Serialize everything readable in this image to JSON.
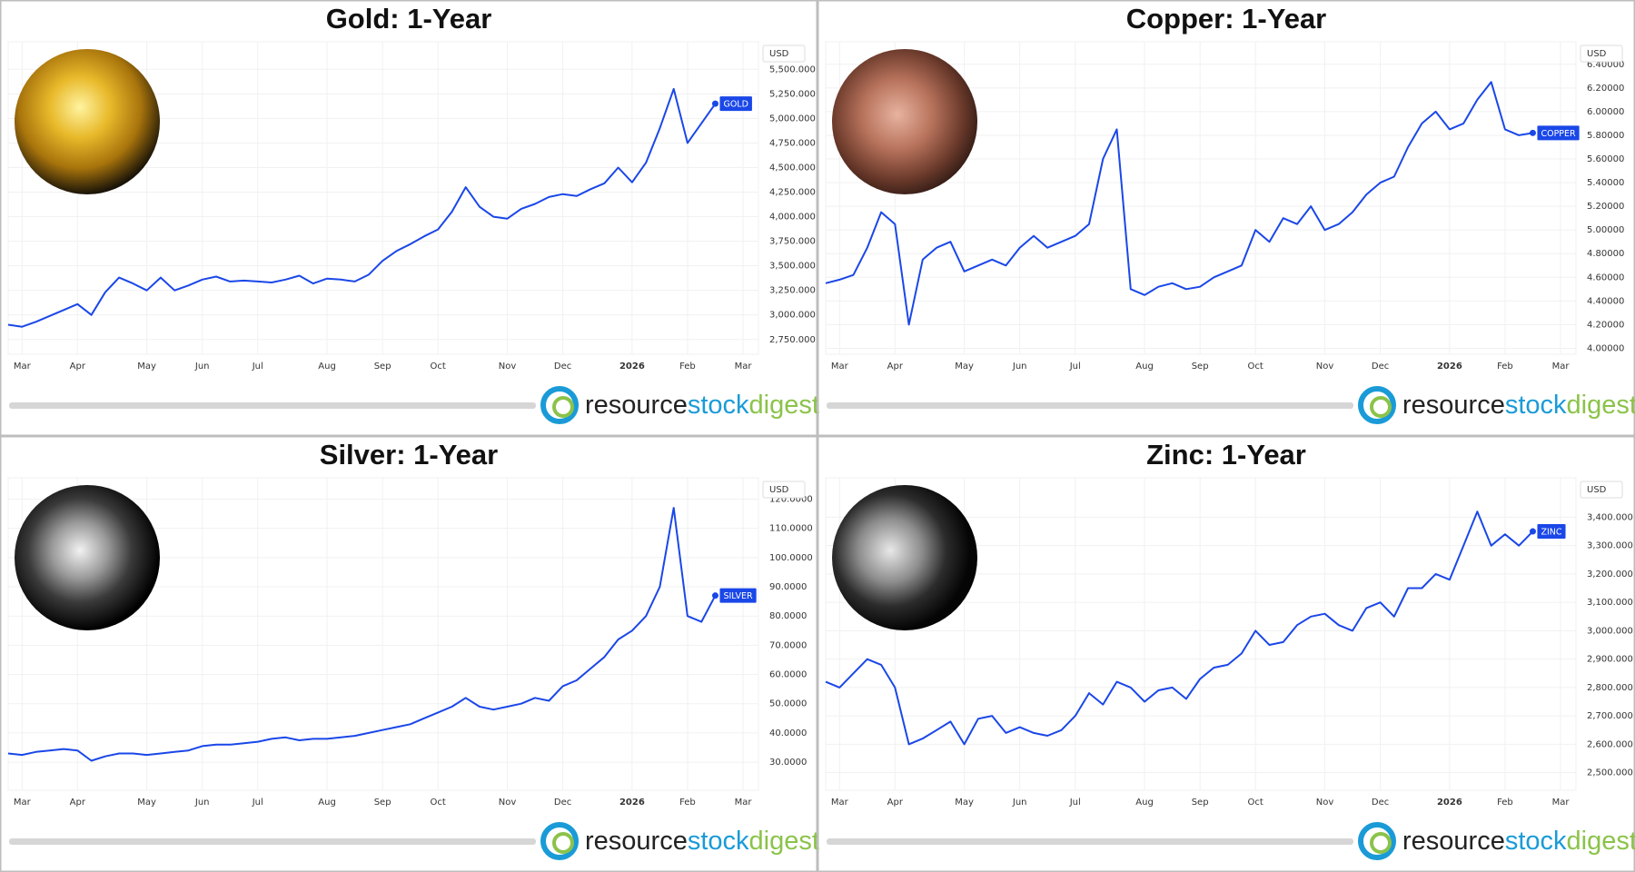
{
  "brand": {
    "part1": "resource",
    "part2": "stock",
    "part3": "digest"
  },
  "chart_data": [
    {
      "type": "line",
      "title": "Gold: 1-Year",
      "y_unit": "USD",
      "categories": [
        null,
        "Mar",
        null,
        null,
        null,
        "Apr",
        null,
        null,
        null,
        null,
        "May",
        null,
        null,
        null,
        "Jun",
        null,
        null,
        null,
        "Jul",
        null,
        null,
        null,
        null,
        "Aug",
        null,
        null,
        null,
        "Sep",
        null,
        null,
        null,
        "Oct",
        null,
        null,
        null,
        null,
        "Nov",
        null,
        null,
        null,
        "Dec",
        null,
        null,
        null,
        null,
        "2026",
        null,
        null,
        null,
        "Feb",
        null,
        null,
        null,
        "Mar"
      ],
      "series": [
        {
          "name": "GOLD",
          "color": "#1a47e8",
          "values": [
            2900,
            2880,
            2930,
            2990,
            3050,
            3110,
            3000,
            3230,
            3380,
            3320,
            3250,
            3380,
            3250,
            3300,
            3360,
            3390,
            3340,
            3350,
            3340,
            3330,
            3360,
            3400,
            3320,
            3370,
            3360,
            3340,
            3410,
            3550,
            3650,
            3720,
            3800,
            3870,
            4050,
            4300,
            4100,
            4000,
            3980,
            4080,
            4130,
            4200,
            4230,
            4210,
            4280,
            4340,
            4500,
            4350,
            4550,
            4900,
            5300,
            4750,
            4950,
            5150,
            null,
            null
          ]
        }
      ],
      "ylim": [
        2600,
        5780
      ],
      "yticks": [
        {
          "value": 2750,
          "label": "2,750.000"
        },
        {
          "value": 3000,
          "label": "3,000.000"
        },
        {
          "value": 3250,
          "label": "3,250.000"
        },
        {
          "value": 3500,
          "label": "3,500.000"
        },
        {
          "value": 3750,
          "label": "3,750.000"
        },
        {
          "value": 4000,
          "label": "4,000.000"
        },
        {
          "value": 4250,
          "label": "4,250.000"
        },
        {
          "value": 4500,
          "label": "4,500.000"
        },
        {
          "value": 4750,
          "label": "4,750.000"
        },
        {
          "value": 5000,
          "label": "5,000.000"
        },
        {
          "value": 5250,
          "label": "5,250.000"
        },
        {
          "value": 5500,
          "label": "5,500.000"
        }
      ],
      "grid": true
    },
    {
      "type": "line",
      "title": "Copper: 1-Year",
      "y_unit": "USD",
      "categories": [
        null,
        "Mar",
        null,
        null,
        null,
        "Apr",
        null,
        null,
        null,
        null,
        "May",
        null,
        null,
        null,
        "Jun",
        null,
        null,
        null,
        "Jul",
        null,
        null,
        null,
        null,
        "Aug",
        null,
        null,
        null,
        "Sep",
        null,
        null,
        null,
        "Oct",
        null,
        null,
        null,
        null,
        "Nov",
        null,
        null,
        null,
        "Dec",
        null,
        null,
        null,
        null,
        "2026",
        null,
        null,
        null,
        "Feb",
        null,
        null,
        null,
        "Mar"
      ],
      "series": [
        {
          "name": "COPPER",
          "color": "#1a47e8",
          "values": [
            4.55,
            4.58,
            4.62,
            4.85,
            5.15,
            5.05,
            4.2,
            4.75,
            4.85,
            4.9,
            4.65,
            4.7,
            4.75,
            4.7,
            4.85,
            4.95,
            4.85,
            4.9,
            4.95,
            5.05,
            5.6,
            5.85,
            4.5,
            4.45,
            4.52,
            4.55,
            4.5,
            4.52,
            4.6,
            4.65,
            4.7,
            5.0,
            4.9,
            5.1,
            5.05,
            5.2,
            5.0,
            5.05,
            5.15,
            5.3,
            5.4,
            5.45,
            5.7,
            5.9,
            6.0,
            5.85,
            5.9,
            6.1,
            6.25,
            5.85,
            5.8,
            5.82,
            null,
            null
          ]
        }
      ],
      "ylim": [
        3.95,
        6.59
      ],
      "yticks": [
        {
          "value": 4.0,
          "label": "4.00000"
        },
        {
          "value": 4.2,
          "label": "4.20000"
        },
        {
          "value": 4.4,
          "label": "4.40000"
        },
        {
          "value": 4.6,
          "label": "4.60000"
        },
        {
          "value": 4.8,
          "label": "4.80000"
        },
        {
          "value": 5.0,
          "label": "5.00000"
        },
        {
          "value": 5.2,
          "label": "5.20000"
        },
        {
          "value": 5.4,
          "label": "5.40000"
        },
        {
          "value": 5.6,
          "label": "5.60000"
        },
        {
          "value": 5.8,
          "label": "5.80000"
        },
        {
          "value": 6.0,
          "label": "6.00000"
        },
        {
          "value": 6.2,
          "label": "6.20000"
        },
        {
          "value": 6.4,
          "label": "6.40000"
        }
      ],
      "grid": true
    },
    {
      "type": "line",
      "title": "Silver: 1-Year",
      "y_unit": "USD",
      "categories": [
        null,
        "Mar",
        null,
        null,
        null,
        "Apr",
        null,
        null,
        null,
        null,
        "May",
        null,
        null,
        null,
        "Jun",
        null,
        null,
        null,
        "Jul",
        null,
        null,
        null,
        null,
        "Aug",
        null,
        null,
        null,
        "Sep",
        null,
        null,
        null,
        "Oct",
        null,
        null,
        null,
        null,
        "Nov",
        null,
        null,
        null,
        "Dec",
        null,
        null,
        null,
        null,
        "2026",
        null,
        null,
        null,
        "Feb",
        null,
        null,
        null,
        "Mar"
      ],
      "series": [
        {
          "name": "SILVER",
          "color": "#1a47e8",
          "values": [
            33,
            32.5,
            33.5,
            34,
            34.5,
            34,
            30.5,
            32,
            33,
            33,
            32.5,
            33,
            33.5,
            34,
            35.5,
            36,
            36,
            36.5,
            37,
            38,
            38.5,
            37.5,
            38,
            38,
            38.5,
            39,
            40,
            41,
            42,
            43,
            45,
            47,
            49,
            52,
            49,
            48,
            49,
            50,
            52,
            51,
            56,
            58,
            62,
            66,
            72,
            75,
            80,
            90,
            117,
            80,
            78,
            87,
            null,
            null
          ]
        }
      ],
      "ylim": [
        20.4,
        127.3
      ],
      "yticks": [
        {
          "value": 30,
          "label": "30.0000"
        },
        {
          "value": 40,
          "label": "40.0000"
        },
        {
          "value": 50,
          "label": "50.0000"
        },
        {
          "value": 60,
          "label": "60.0000"
        },
        {
          "value": 70,
          "label": "70.0000"
        },
        {
          "value": 80,
          "label": "80.0000"
        },
        {
          "value": 90,
          "label": "90.0000"
        },
        {
          "value": 100,
          "label": "100.0000"
        },
        {
          "value": 110,
          "label": "110.0000"
        },
        {
          "value": 120,
          "label": "120.0000"
        }
      ],
      "grid": true
    },
    {
      "type": "line",
      "title": "Zinc: 1-Year",
      "y_unit": "USD",
      "categories": [
        null,
        "Mar",
        null,
        null,
        null,
        "Apr",
        null,
        null,
        null,
        null,
        "May",
        null,
        null,
        null,
        "Jun",
        null,
        null,
        null,
        "Jul",
        null,
        null,
        null,
        null,
        "Aug",
        null,
        null,
        null,
        "Sep",
        null,
        null,
        null,
        "Oct",
        null,
        null,
        null,
        null,
        "Nov",
        null,
        null,
        null,
        "Dec",
        null,
        null,
        null,
        null,
        "2026",
        null,
        null,
        null,
        "Feb",
        null,
        null,
        null,
        "Mar"
      ],
      "series": [
        {
          "name": "ZINC",
          "color": "#1a47e8",
          "values": [
            2820,
            2800,
            2850,
            2900,
            2880,
            2800,
            2600,
            2620,
            2650,
            2680,
            2600,
            2690,
            2700,
            2640,
            2660,
            2640,
            2630,
            2650,
            2700,
            2780,
            2740,
            2820,
            2800,
            2750,
            2790,
            2800,
            2760,
            2830,
            2870,
            2880,
            2920,
            3000,
            2950,
            2960,
            3020,
            3050,
            3060,
            3020,
            3000,
            3080,
            3100,
            3050,
            3150,
            3150,
            3200,
            3180,
            3300,
            3420,
            3300,
            3340,
            3300,
            3350,
            null,
            null
          ]
        }
      ],
      "ylim": [
        2438,
        3539
      ],
      "yticks": [
        {
          "value": 2500,
          "label": "2,500.000"
        },
        {
          "value": 2600,
          "label": "2,600.000"
        },
        {
          "value": 2700,
          "label": "2,700.000"
        },
        {
          "value": 2800,
          "label": "2,800.000"
        },
        {
          "value": 2900,
          "label": "2,900.000"
        },
        {
          "value": 3000,
          "label": "3,000.000"
        },
        {
          "value": 3100,
          "label": "3,100.000"
        },
        {
          "value": 3200,
          "label": "3,200.000"
        },
        {
          "value": 3300,
          "label": "3,300.000"
        },
        {
          "value": 3400,
          "label": "3,400.000"
        }
      ],
      "grid": true
    }
  ]
}
